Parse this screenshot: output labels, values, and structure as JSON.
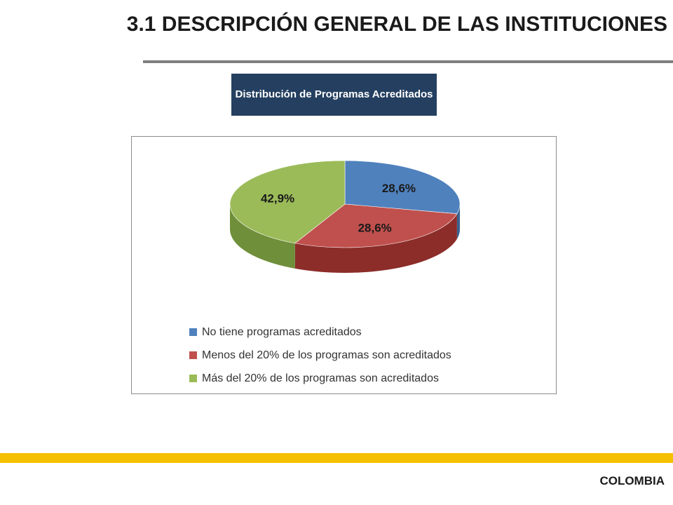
{
  "page": {
    "title": "3.1 DESCRIPCIÓN GENERAL DE LAS INSTITUCIONES",
    "footer": "COLOMBIA"
  },
  "chart_data": {
    "type": "pie",
    "title": "Distribución de Programas Acreditados",
    "slices": [
      {
        "label": "No tiene programas acreditados",
        "value": 28.6,
        "display": "28,6%",
        "color": "#4f81bd",
        "side_color": "#3a6190"
      },
      {
        "label": "Menos del 20% de los programas son acreditados",
        "value": 28.6,
        "display": "28,6%",
        "color": "#c0504d",
        "side_color": "#8c2d2a"
      },
      {
        "label": "Más del 20% de los programas son acreditados",
        "value": 42.9,
        "display": "42,9%",
        "color": "#9bbb59",
        "side_color": "#6f8f3a"
      }
    ],
    "legend_position": "bottom"
  },
  "colors": {
    "title_box": "#243f60",
    "rule": "#7f7f7f",
    "footer_bar": "#f5c000"
  }
}
